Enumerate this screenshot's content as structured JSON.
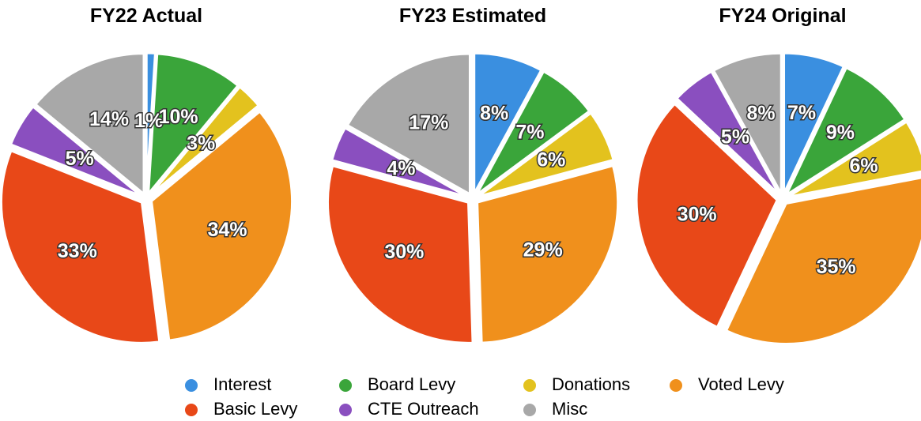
{
  "legend": {
    "labels": [
      "Interest",
      "Board Levy",
      "Donations",
      "Voted Levy",
      "Basic Levy",
      "CTE Outreach",
      "Misc"
    ],
    "colors": [
      "#3a8fe0",
      "#3aa53a",
      "#e3c21e",
      "#f0901c",
      "#e84818",
      "#8a4fbf",
      "#a8a8a8"
    ]
  },
  "chart_data": [
    {
      "type": "pie",
      "title": "FY22 Actual",
      "values": [
        1,
        10,
        3,
        34,
        33,
        5,
        14
      ],
      "value_labels": [
        "1%",
        "10%",
        "3%",
        "34%",
        "33%",
        "5%",
        "14%"
      ]
    },
    {
      "type": "pie",
      "title": "FY23 Estimated",
      "values": [
        8,
        7,
        6,
        29,
        30,
        4,
        17
      ],
      "value_labels": [
        "8%",
        "7%",
        "6%",
        "29%",
        "30%",
        "4%",
        "17%"
      ]
    },
    {
      "type": "pie",
      "title": "FY24 Original",
      "values": [
        7,
        9,
        6,
        35,
        30,
        5,
        8
      ],
      "value_labels": [
        "7%",
        "9%",
        "6%",
        "35%",
        "30%",
        "5%",
        "8%"
      ]
    }
  ]
}
